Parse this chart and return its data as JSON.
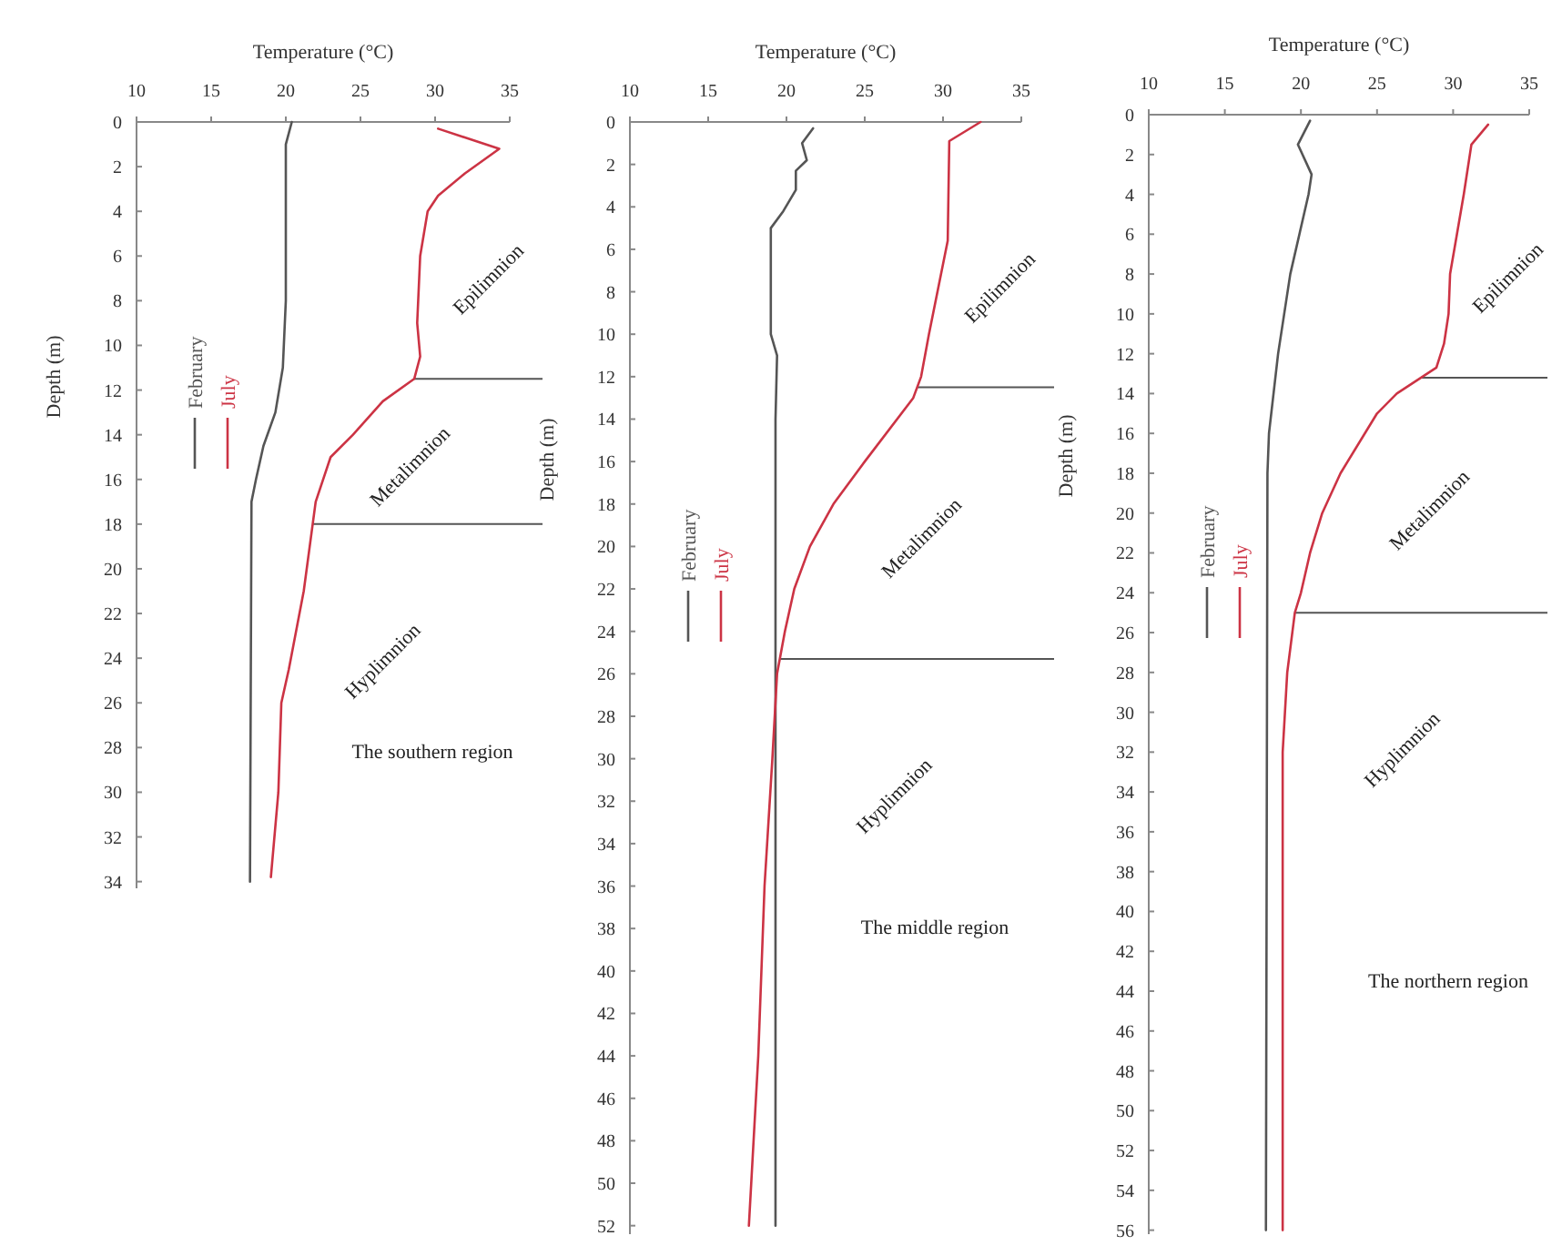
{
  "chart_data": [
    {
      "type": "line",
      "title": "The southern region",
      "xlabel": "Temperature (°C)",
      "ylabel": "Depth (m)",
      "xlim": [
        10,
        35
      ],
      "xticks": [
        10,
        15,
        20,
        25,
        30,
        35
      ],
      "ylim": [
        34.3,
        0
      ],
      "yticks": [
        0,
        2,
        4,
        6,
        8,
        10,
        12,
        14,
        16,
        18,
        20,
        22,
        24,
        26,
        28,
        30,
        32,
        34
      ],
      "legend": "left",
      "grid": false,
      "marker": "none",
      "line_style": "solid",
      "series": [
        {
          "name": "February",
          "color": "#555555",
          "x": [
            20.4,
            20,
            20,
            19.8,
            19.3,
            18.5,
            18,
            17.7,
            17.6
          ],
          "values": [
            0,
            1,
            8,
            11,
            13,
            14.5,
            16,
            17,
            34
          ]
        },
        {
          "name": "July",
          "color": "#cc3344",
          "x": [
            30.2,
            34.3,
            32,
            30.2,
            29.5,
            29,
            28.8,
            29,
            28.6,
            26.5,
            24.5,
            23,
            22,
            21.8,
            21.2,
            20.2,
            19.7,
            19.5,
            19
          ],
          "values": [
            0.3,
            1.2,
            2.3,
            3.3,
            4,
            6,
            9,
            10.5,
            11.5,
            12.5,
            14,
            15,
            17,
            18,
            21,
            24.5,
            26,
            30,
            33.8
          ]
        }
      ],
      "ref_lines": [
        {
          "axis": "y",
          "value": 11.5
        },
        {
          "axis": "y",
          "value": 18
        }
      ],
      "annotations": [
        "Epilimnion",
        "Metalimnion",
        "Hyplimnion"
      ]
    },
    {
      "type": "line",
      "title": "The middle region",
      "xlabel": "Temperature (°C)",
      "ylabel": "Depth (m)",
      "xlim": [
        10,
        35
      ],
      "xticks": [
        10,
        15,
        20,
        25,
        30,
        35
      ],
      "ylim": [
        52.4,
        0
      ],
      "yticks": [
        0,
        2,
        4,
        6,
        8,
        10,
        12,
        14,
        16,
        18,
        20,
        22,
        24,
        26,
        28,
        30,
        32,
        34,
        36,
        38,
        40,
        42,
        44,
        46,
        48,
        50,
        52
      ],
      "legend": "left",
      "grid": false,
      "marker": "none",
      "line_style": "solid",
      "series": [
        {
          "name": "February",
          "color": "#555555",
          "x": [
            21.7,
            21,
            21.3,
            20.6,
            20.6,
            19.8,
            19,
            19,
            19.4,
            19.3,
            19.3
          ],
          "values": [
            0.3,
            1,
            1.8,
            2.3,
            3.2,
            4.2,
            5,
            10,
            11,
            14,
            52
          ]
        },
        {
          "name": "July",
          "color": "#cc3344",
          "x": [
            32.4,
            30.4,
            30.3,
            29.1,
            28.6,
            28.1,
            25,
            23,
            21.5,
            20.5,
            19.9,
            19.4,
            19.1,
            18.6,
            18.2,
            17.6
          ],
          "values": [
            0,
            0.9,
            5.6,
            10,
            12,
            13,
            16,
            18,
            20,
            22,
            24,
            26,
            30,
            36,
            44,
            52
          ]
        }
      ],
      "ref_lines": [
        {
          "axis": "y",
          "value": 12.5
        },
        {
          "axis": "y",
          "value": 25.3
        }
      ],
      "annotations": [
        "Epilimnion",
        "Metalimnion",
        "Hyplimnion"
      ]
    },
    {
      "type": "line",
      "title": "The northern region",
      "xlabel": "Temperature (°C)",
      "ylabel": "Depth (m)",
      "xlim": [
        10,
        35
      ],
      "xticks": [
        10,
        15,
        20,
        25,
        30,
        35
      ],
      "ylim": [
        56.2,
        0
      ],
      "yticks": [
        0,
        2,
        4,
        6,
        8,
        10,
        12,
        14,
        16,
        18,
        20,
        22,
        24,
        26,
        28,
        30,
        32,
        34,
        36,
        38,
        40,
        42,
        44,
        46,
        48,
        50,
        52,
        54,
        56
      ],
      "legend": "left",
      "grid": false,
      "marker": "none",
      "line_style": "solid",
      "series": [
        {
          "name": "February",
          "color": "#555555",
          "x": [
            20.6,
            19.8,
            20.7,
            20.5,
            19.3,
            18.5,
            17.9,
            17.8,
            17.7
          ],
          "values": [
            0.3,
            1.5,
            3,
            4,
            8,
            12,
            16,
            18,
            56
          ]
        },
        {
          "name": "July",
          "color": "#cc3344",
          "x": [
            32.3,
            31.2,
            30.7,
            29.8,
            29.7,
            29.4,
            28.9,
            26.3,
            25,
            22.6,
            21.4,
            20.6,
            20,
            19.6,
            19.1,
            18.8,
            18.8
          ],
          "values": [
            0.5,
            1.5,
            4,
            8,
            10,
            11.5,
            12.7,
            14,
            15,
            18,
            20,
            22,
            24,
            25,
            28,
            32,
            56
          ]
        }
      ],
      "ref_lines": [
        {
          "axis": "y",
          "value": 13.2
        },
        {
          "axis": "y",
          "value": 25
        }
      ],
      "annotations": [
        "Epilimnion",
        "Metalimnion",
        "Hyplimnion"
      ]
    }
  ]
}
